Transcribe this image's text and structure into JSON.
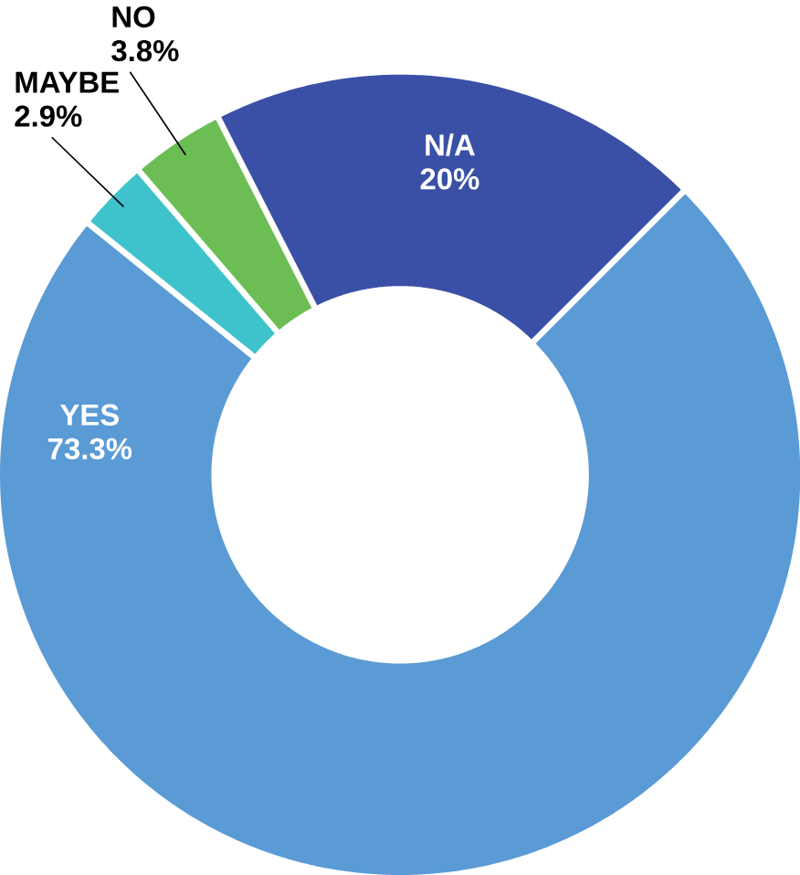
{
  "chart_data": {
    "type": "donut",
    "categories": [
      "N/A",
      "YES",
      "MAYBE",
      "NO"
    ],
    "values": [
      20,
      73.3,
      2.9,
      3.8
    ],
    "value_labels": [
      "20%",
      "73.3%",
      "2.9%",
      "3.8%"
    ],
    "colors": [
      "#3a50a6",
      "#5a9bd6",
      "#3ec3cc",
      "#6cbd54"
    ]
  }
}
